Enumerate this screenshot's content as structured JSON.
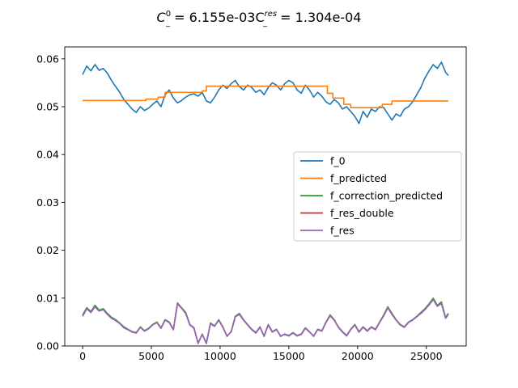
{
  "chart_data": {
    "type": "line",
    "title": {
      "part1": "C",
      "part1_sup": "0",
      "part1_sub": "_",
      "part2": "  = 6.155e-03C",
      "part2_sup": "res",
      "part2_sub": "_",
      "part3": " = 1.304e-04"
    },
    "xlabel": "",
    "ylabel": "",
    "xlim": [
      -1300,
      27900
    ],
    "ylim": [
      0.0,
      0.0625
    ],
    "xticks": [
      0,
      5000,
      10000,
      15000,
      20000,
      25000
    ],
    "xtick_labels": [
      "0",
      "5000",
      "10000",
      "15000",
      "20000",
      "25000"
    ],
    "yticks": [
      0.0,
      0.01,
      0.02,
      0.03,
      0.04,
      0.05,
      0.06
    ],
    "ytick_labels": [
      "0.00",
      "0.01",
      "0.02",
      "0.03",
      "0.04",
      "0.05",
      "0.06"
    ],
    "grid": false,
    "legend_position": "center-right",
    "series": [
      {
        "name": "f_0",
        "color": "#1f77b4",
        "x": [
          0,
          300,
          600,
          900,
          1200,
          1500,
          1800,
          2100,
          2400,
          2700,
          3000,
          3300,
          3600,
          3900,
          4200,
          4500,
          4800,
          5100,
          5400,
          5700,
          6000,
          6300,
          6600,
          6900,
          7200,
          7500,
          7800,
          8100,
          8400,
          8700,
          9000,
          9300,
          9600,
          9900,
          10200,
          10500,
          10800,
          11100,
          11400,
          11700,
          12000,
          12300,
          12600,
          12900,
          13200,
          13500,
          13800,
          14100,
          14400,
          14700,
          15000,
          15300,
          15600,
          15900,
          16200,
          16500,
          16800,
          17100,
          17400,
          17700,
          18000,
          18300,
          18600,
          18900,
          19200,
          19500,
          19800,
          20100,
          20400,
          20700,
          21000,
          21300,
          21600,
          21900,
          22200,
          22500,
          22800,
          23100,
          23400,
          23700,
          24000,
          24300,
          24600,
          24900,
          25200,
          25500,
          25800,
          26100,
          26400,
          26600
        ],
        "values": [
          0.0567,
          0.0585,
          0.0575,
          0.0588,
          0.0576,
          0.058,
          0.057,
          0.0555,
          0.0542,
          0.053,
          0.0515,
          0.0505,
          0.0495,
          0.0488,
          0.05,
          0.0492,
          0.0497,
          0.0505,
          0.0512,
          0.05,
          0.0525,
          0.0535,
          0.0518,
          0.0508,
          0.0513,
          0.052,
          0.0525,
          0.0527,
          0.0522,
          0.053,
          0.0512,
          0.0508,
          0.052,
          0.0535,
          0.0545,
          0.0538,
          0.0548,
          0.0555,
          0.0542,
          0.0535,
          0.0545,
          0.054,
          0.053,
          0.0535,
          0.0525,
          0.054,
          0.055,
          0.0545,
          0.0535,
          0.0548,
          0.0555,
          0.055,
          0.0535,
          0.0528,
          0.0545,
          0.0535,
          0.052,
          0.053,
          0.0522,
          0.051,
          0.0505,
          0.0515,
          0.0508,
          0.0495,
          0.05,
          0.049,
          0.048,
          0.0465,
          0.049,
          0.0478,
          0.0495,
          0.049,
          0.05,
          0.0498,
          0.0485,
          0.0472,
          0.0485,
          0.048,
          0.0495,
          0.05,
          0.051,
          0.0525,
          0.054,
          0.056,
          0.0575,
          0.0588,
          0.058,
          0.0593,
          0.0572,
          0.0565
        ]
      },
      {
        "name": "f_predicted",
        "color": "#ff7f0e",
        "x": [
          0,
          4600,
          4600,
          5500,
          5500,
          6000,
          6000,
          8700,
          8700,
          9000,
          9000,
          10500,
          10500,
          17800,
          17800,
          18200,
          18200,
          19000,
          19000,
          19500,
          19500,
          21800,
          21800,
          22500,
          22500,
          26600
        ],
        "values": [
          0.0513,
          0.0513,
          0.0516,
          0.0516,
          0.052,
          0.052,
          0.053,
          0.053,
          0.0533,
          0.0533,
          0.0543,
          0.0543,
          0.0543,
          0.0543,
          0.0528,
          0.0528,
          0.0518,
          0.0518,
          0.0505,
          0.0505,
          0.0498,
          0.0498,
          0.0505,
          0.0505,
          0.0512,
          0.0512
        ]
      },
      {
        "name": "f_correction_predicted",
        "color": "#2ca02c",
        "x": [
          0,
          300,
          600,
          900,
          1200,
          1500,
          1800,
          2100,
          2400,
          2700,
          3000,
          3300,
          3600,
          3900,
          4200,
          4500,
          4800,
          5100,
          5400,
          5700,
          6000,
          6300,
          6600,
          6900,
          7200,
          7500,
          7800,
          8100,
          8400,
          8700,
          9000,
          9300,
          9600,
          9900,
          10200,
          10500,
          10800,
          11100,
          11400,
          11700,
          12000,
          12300,
          12600,
          12900,
          13200,
          13500,
          13800,
          14100,
          14400,
          14700,
          15000,
          15300,
          15600,
          15900,
          16200,
          16500,
          16800,
          17100,
          17400,
          17700,
          18000,
          18300,
          18600,
          18900,
          19200,
          19500,
          19800,
          20100,
          20400,
          20700,
          21000,
          21300,
          21600,
          21900,
          22200,
          22500,
          22800,
          23100,
          23400,
          23700,
          24000,
          24300,
          24600,
          24900,
          25200,
          25500,
          25800,
          26100,
          26400,
          26600
        ],
        "values": [
          0.0065,
          0.008,
          0.0072,
          0.0085,
          0.0075,
          0.0078,
          0.0068,
          0.006,
          0.0055,
          0.0048,
          0.004,
          0.0035,
          0.003,
          0.0028,
          0.004,
          0.0032,
          0.0037,
          0.0045,
          0.005,
          0.0038,
          0.0055,
          0.005,
          0.0035,
          0.009,
          0.008,
          0.007,
          0.0045,
          0.0038,
          0.0005,
          0.0025,
          0.0005,
          0.0048,
          0.0042,
          0.0055,
          0.004,
          0.002,
          0.003,
          0.0062,
          0.0068,
          0.0055,
          0.0045,
          0.0035,
          0.0028,
          0.004,
          0.002,
          0.0045,
          0.003,
          0.0035,
          0.002,
          0.0025,
          0.0022,
          0.0028,
          0.0022,
          0.0025,
          0.0038,
          0.003,
          0.002,
          0.0035,
          0.0032,
          0.005,
          0.0065,
          0.0055,
          0.004,
          0.003,
          0.0022,
          0.0035,
          0.0045,
          0.003,
          0.004,
          0.0032,
          0.004,
          0.0035,
          0.005,
          0.0065,
          0.0082,
          0.0068,
          0.0055,
          0.0045,
          0.004,
          0.005,
          0.0055,
          0.0062,
          0.007,
          0.0078,
          0.0088,
          0.01,
          0.0085,
          0.0092,
          0.006,
          0.0068
        ]
      },
      {
        "name": "f_res_double",
        "color": "#d62728",
        "x": [
          0,
          300,
          600,
          900,
          1200,
          1500,
          1800,
          2100,
          2400,
          2700,
          3000,
          3300,
          3600,
          3900,
          4200,
          4500,
          4800,
          5100,
          5400,
          5700,
          6000,
          6300,
          6600,
          6900,
          7200,
          7500,
          7800,
          8100,
          8400,
          8700,
          9000,
          9300,
          9600,
          9900,
          10200,
          10500,
          10800,
          11100,
          11400,
          11700,
          12000,
          12300,
          12600,
          12900,
          13200,
          13500,
          13800,
          14100,
          14400,
          14700,
          15000,
          15300,
          15600,
          15900,
          16200,
          16500,
          16800,
          17100,
          17400,
          17700,
          18000,
          18300,
          18600,
          18900,
          19200,
          19500,
          19800,
          20100,
          20400,
          20700,
          21000,
          21300,
          21600,
          21900,
          22200,
          22500,
          22800,
          23100,
          23400,
          23700,
          24000,
          24300,
          24600,
          24900,
          25200,
          25500,
          25800,
          26100,
          26400,
          26600
        ],
        "values": [
          0.0062,
          0.0078,
          0.007,
          0.0082,
          0.0073,
          0.0076,
          0.0066,
          0.0058,
          0.0053,
          0.0047,
          0.0038,
          0.0034,
          0.0029,
          0.0027,
          0.0039,
          0.0031,
          0.0036,
          0.0044,
          0.0049,
          0.0037,
          0.0054,
          0.0049,
          0.0034,
          0.0088,
          0.0079,
          0.0068,
          0.0044,
          0.0037,
          0.0006,
          0.0024,
          0.0006,
          0.0047,
          0.0041,
          0.0054,
          0.0039,
          0.0021,
          0.0029,
          0.0061,
          0.0066,
          0.0054,
          0.0044,
          0.0034,
          0.0027,
          0.0039,
          0.0021,
          0.0044,
          0.0029,
          0.0034,
          0.0021,
          0.0024,
          0.0021,
          0.0027,
          0.0021,
          0.0024,
          0.0037,
          0.0029,
          0.0021,
          0.0034,
          0.0031,
          0.0049,
          0.0063,
          0.0054,
          0.0039,
          0.0029,
          0.0021,
          0.0034,
          0.0044,
          0.0029,
          0.0039,
          0.0031,
          0.0039,
          0.0034,
          0.0049,
          0.0063,
          0.008,
          0.0066,
          0.0054,
          0.0044,
          0.0039,
          0.0049,
          0.0054,
          0.0061,
          0.0068,
          0.0076,
          0.0086,
          0.0097,
          0.0083,
          0.0089,
          0.0058,
          0.0066
        ]
      },
      {
        "name": "f_res",
        "color": "#9467bd",
        "x": [
          0,
          300,
          600,
          900,
          1200,
          1500,
          1800,
          2100,
          2400,
          2700,
          3000,
          3300,
          3600,
          3900,
          4200,
          4500,
          4800,
          5100,
          5400,
          5700,
          6000,
          6300,
          6600,
          6900,
          7200,
          7500,
          7800,
          8100,
          8400,
          8700,
          9000,
          9300,
          9600,
          9900,
          10200,
          10500,
          10800,
          11100,
          11400,
          11700,
          12000,
          12300,
          12600,
          12900,
          13200,
          13500,
          13800,
          14100,
          14400,
          14700,
          15000,
          15300,
          15600,
          15900,
          16200,
          16500,
          16800,
          17100,
          17400,
          17700,
          18000,
          18300,
          18600,
          18900,
          19200,
          19500,
          19800,
          20100,
          20400,
          20700,
          21000,
          21300,
          21600,
          21900,
          22200,
          22500,
          22800,
          23100,
          23400,
          23700,
          24000,
          24300,
          24600,
          24900,
          25200,
          25500,
          25800,
          26100,
          26400,
          26600
        ],
        "values": [
          0.0062,
          0.0078,
          0.007,
          0.0082,
          0.0073,
          0.0076,
          0.0066,
          0.0058,
          0.0053,
          0.0047,
          0.0038,
          0.0034,
          0.0029,
          0.0027,
          0.0039,
          0.0031,
          0.0036,
          0.0044,
          0.0049,
          0.0037,
          0.0054,
          0.0049,
          0.0034,
          0.0088,
          0.0079,
          0.0068,
          0.0044,
          0.0037,
          0.0006,
          0.0024,
          0.0006,
          0.0047,
          0.0041,
          0.0054,
          0.0039,
          0.0021,
          0.0029,
          0.0061,
          0.0066,
          0.0054,
          0.0044,
          0.0034,
          0.0027,
          0.0039,
          0.0021,
          0.0044,
          0.0029,
          0.0034,
          0.0021,
          0.0024,
          0.0021,
          0.0027,
          0.0021,
          0.0024,
          0.0037,
          0.0029,
          0.0021,
          0.0034,
          0.0031,
          0.0049,
          0.0063,
          0.0054,
          0.0039,
          0.0029,
          0.0021,
          0.0034,
          0.0044,
          0.0029,
          0.0039,
          0.0031,
          0.0039,
          0.0034,
          0.0049,
          0.0063,
          0.008,
          0.0066,
          0.0054,
          0.0044,
          0.0039,
          0.0049,
          0.0054,
          0.0061,
          0.0068,
          0.0076,
          0.0086,
          0.0097,
          0.0083,
          0.0089,
          0.0058,
          0.0066
        ]
      }
    ]
  }
}
